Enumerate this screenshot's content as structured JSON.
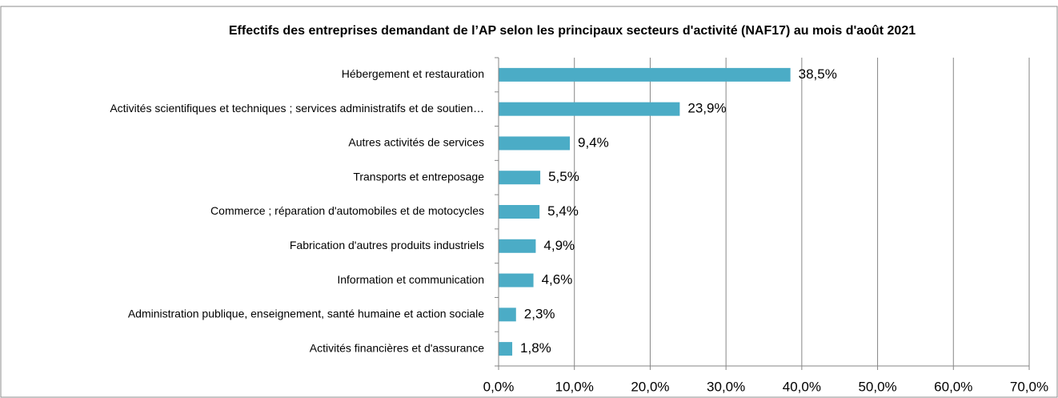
{
  "chart_data": {
    "type": "barh",
    "title": "Effectifs des entreprises demandant de l’AP selon les principaux secteurs d'activité (NAF17) au mois d'août 2021",
    "categories": [
      "Hébergement et restauration",
      "Activités scientifiques et techniques ; services administratifs et de soutien…",
      "Autres activités de services",
      "Transports et entreposage",
      "Commerce ; réparation d'automobiles et de motocycles",
      "Fabrication d'autres produits industriels",
      "Information et communication",
      "Administration publique, enseignement, santé humaine et action sociale",
      "Activités financières et d'assurance"
    ],
    "values": [
      38.5,
      23.9,
      9.4,
      5.5,
      5.4,
      4.9,
      4.6,
      2.3,
      1.8
    ],
    "value_labels": [
      "38,5%",
      "23,9%",
      "9,4%",
      "5,5%",
      "5,4%",
      "4,9%",
      "4,6%",
      "2,3%",
      "1,8%"
    ],
    "color": "#4bacc6",
    "xlim": [
      0,
      70
    ],
    "xticks": [
      {
        "value": 0,
        "label": "0,0%"
      },
      {
        "value": 10,
        "label": "10,0%"
      },
      {
        "value": 20,
        "label": "20,0%"
      },
      {
        "value": 30,
        "label": "30,0%"
      },
      {
        "value": 40,
        "label": "40,0%"
      },
      {
        "value": 50,
        "label": "50,0%"
      },
      {
        "value": 60,
        "label": "60,0%"
      },
      {
        "value": 70,
        "label": "70,0%"
      }
    ],
    "grid": true
  }
}
